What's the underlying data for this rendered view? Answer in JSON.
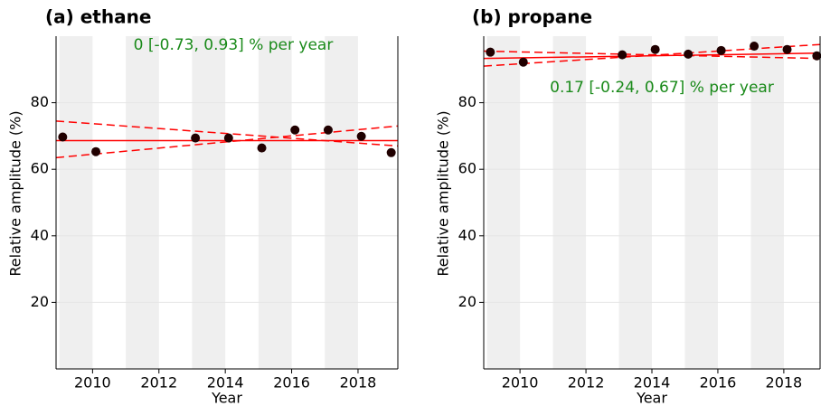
{
  "chart_data": [
    {
      "type": "scatter",
      "title": "(a) ethane",
      "annotation": "0 [-0.73, 0.93] % per year",
      "xlabel": "Year",
      "ylabel": "Relative amplitude (%)",
      "xlim": [
        2008.9,
        2019.2
      ],
      "xticks": [
        2010,
        2012,
        2014,
        2016,
        2018
      ],
      "ylim": [
        0,
        100
      ],
      "yticks": [
        20,
        40,
        60,
        80
      ],
      "grid": true,
      "shaded_years": [
        [
          2009,
          2010
        ],
        [
          2011,
          2012
        ],
        [
          2013,
          2014
        ],
        [
          2015,
          2016
        ],
        [
          2017,
          2018
        ]
      ],
      "x": [
        2009.1,
        2010.1,
        2013.1,
        2014.1,
        2015.1,
        2016.1,
        2017.1,
        2018.1,
        2019.0
      ],
      "series": [
        {
          "color": "#200000",
          "values": [
            69.7,
            65.3,
            69.4,
            69.4,
            66.4,
            71.8,
            71.8,
            69.9,
            65.0
          ]
        }
      ],
      "lines": [
        {
          "color": "#ff0000",
          "dashed": false,
          "x": [
            2008.9,
            2019.2
          ],
          "values": [
            68.6,
            68.6
          ]
        },
        {
          "color": "#ff0000",
          "dashed": true,
          "x": [
            2008.9,
            2019.2
          ],
          "values": [
            74.5,
            67.0
          ]
        },
        {
          "color": "#ff0000",
          "dashed": true,
          "x": [
            2008.9,
            2019.2
          ],
          "values": [
            63.5,
            73.0
          ]
        }
      ]
    },
    {
      "type": "scatter",
      "title": "(b) propane",
      "annotation": "0.17 [-0.24, 0.67] % per year",
      "xlabel": "Year",
      "ylabel": "Relative amplitude (%)",
      "xlim": [
        2008.9,
        2019.1
      ],
      "xticks": [
        2010,
        2012,
        2014,
        2016,
        2018
      ],
      "ylim": [
        0,
        100
      ],
      "yticks": [
        20,
        40,
        60,
        80
      ],
      "grid": true,
      "shaded_years": [
        [
          2009,
          2010
        ],
        [
          2011,
          2012
        ],
        [
          2013,
          2014
        ],
        [
          2015,
          2016
        ],
        [
          2017,
          2018
        ]
      ],
      "x": [
        2009.1,
        2010.1,
        2013.1,
        2014.1,
        2015.1,
        2016.1,
        2017.1,
        2018.1,
        2019.0
      ],
      "series": [
        {
          "color": "#200000",
          "values": [
            95.2,
            92.2,
            94.4,
            96.0,
            94.6,
            95.7,
            97.0,
            96.0,
            94.1
          ]
        }
      ],
      "lines": [
        {
          "color": "#ff0000",
          "dashed": false,
          "x": [
            2008.9,
            2019.1
          ],
          "values": [
            93.3,
            94.9
          ]
        },
        {
          "color": "#ff0000",
          "dashed": true,
          "x": [
            2008.9,
            2019.1
          ],
          "values": [
            95.5,
            93.3
          ]
        },
        {
          "color": "#ff0000",
          "dashed": true,
          "x": [
            2008.9,
            2019.1
          ],
          "values": [
            91.0,
            97.5
          ]
        }
      ]
    }
  ]
}
